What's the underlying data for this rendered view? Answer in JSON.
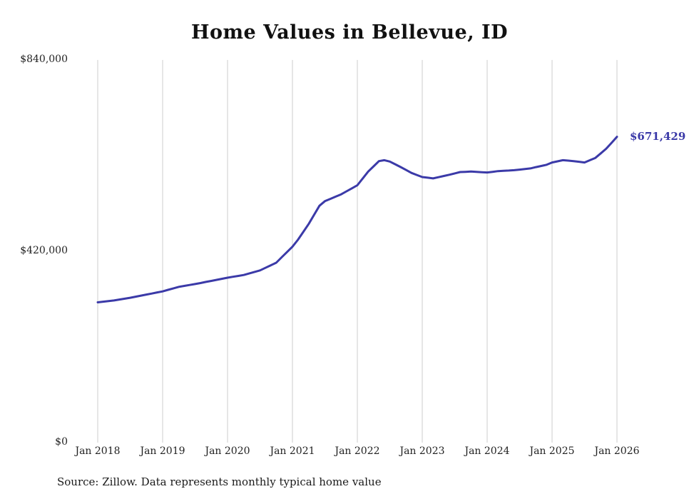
{
  "chart_data": {
    "type": "line",
    "title": "Home Values in Bellevue, ID",
    "xlabel": "",
    "ylabel": "",
    "ylim": [
      0,
      840000
    ],
    "grid": "vertical-only",
    "legend": "none",
    "x_start": "2018-01",
    "x_interval": "monthly",
    "x_tick_labels": [
      "Jan 2018",
      "Jan 2019",
      "Jan 2020",
      "Jan 2021",
      "Jan 2022",
      "Jan 2023",
      "Jan 2024",
      "Jan 2025",
      "Jan 2026"
    ],
    "y_ticks": [
      {
        "value": 0,
        "label": "$0"
      },
      {
        "value": 420000,
        "label": "$420,000"
      },
      {
        "value": 840000,
        "label": "$840,000"
      }
    ],
    "end_label": "$671,429",
    "end_value": 671429,
    "series": [
      {
        "name": "Typical home value",
        "color": "#3b3aa8",
        "values": [
          308000,
          309300,
          310700,
          312000,
          314000,
          316000,
          318000,
          320300,
          322700,
          325000,
          327300,
          329700,
          332000,
          335300,
          338700,
          342000,
          344000,
          346000,
          348000,
          350300,
          352700,
          355000,
          357300,
          359700,
          362000,
          364000,
          366000,
          368000,
          371300,
          374700,
          378000,
          383700,
          389300,
          395000,
          406700,
          418300,
          430000,
          445000,
          462500,
          480000,
          500000,
          520000,
          530000,
          535000,
          540000,
          545000,
          551700,
          558300,
          565000,
          580000,
          595000,
          606500,
          618000,
          620000,
          617000,
          611000,
          605000,
          598500,
          592000,
          587500,
          583000,
          581500,
          580000,
          582700,
          585300,
          588000,
          591000,
          594000,
          594500,
          595000,
          594300,
          593700,
          593000,
          594500,
          596000,
          596700,
          597300,
          598000,
          599300,
          600700,
          602000,
          604700,
          607300,
          610000,
          615000,
          617500,
          620000,
          619000,
          618000,
          616500,
          615000,
          620000,
          625000,
          635000,
          645000,
          658000,
          671429
        ]
      }
    ]
  },
  "colors": {
    "line": "#3b3aa8",
    "grid": "#cccccc",
    "text": "#222222"
  },
  "source_note": "Source: Zillow. Data represents monthly typical home value"
}
